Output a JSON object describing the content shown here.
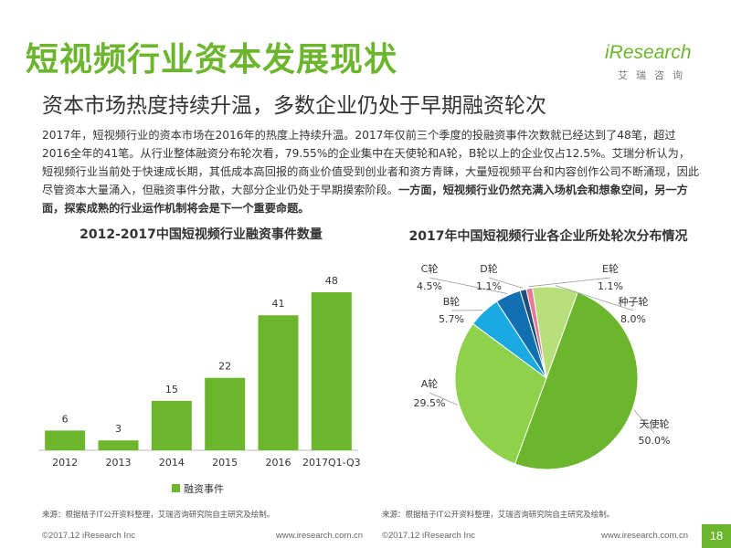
{
  "header": {
    "title": "短视频行业资本发展现状",
    "subtitle": "资本市场热度持续升温，多数企业仍处于早期融资轮次",
    "logo_main": "iResearch",
    "logo_sub": "艾瑞咨询"
  },
  "body": {
    "paragraph": "2017年，短视频行业的资本市场在2016年的热度上持续升温。2017年仅前三个季度的投融资事件次数就已经达到了48笔，超过2016全年的41笔。从行业整体融资分布轮次看，79.55%的企业集中在天使轮和A轮，B轮以上的企业仅占12.5%。艾瑞分析认为，短视频行业当前处于快速成长期，其低成本高回报的商业价值受到创业者和资方青睐，大量短视频平台和内容创作公司不断涌现，因此尽管资本大量涌入，但融资事件分散，大部分企业仍处于早期摸索阶段。",
    "paragraph_bold": "一方面，短视频行业仍然充满入场机会和想象空间，另一方面，探索成熟的行业运作机制将会是下一个重要命题。"
  },
  "colors": {
    "accent": "#6cb62e"
  },
  "chart_data": [
    {
      "type": "bar",
      "title": "2012-2017中国短视频行业融资事件数量",
      "categories": [
        "2012",
        "2013",
        "2014",
        "2015",
        "2016",
        "2017Q1-Q3"
      ],
      "series": [
        {
          "name": "融资事件",
          "values": [
            6,
            3,
            15,
            22,
            41,
            48
          ]
        }
      ],
      "ylim": [
        0,
        48
      ],
      "legend": "bottom",
      "colors": [
        "#6cb62e"
      ]
    },
    {
      "type": "pie",
      "title": "2017年中国短视频行业各企业所处轮次分布情况",
      "slices": [
        {
          "label": "天使轮",
          "value": 50.0,
          "value_label": "50.0%",
          "color": "#6cb62e"
        },
        {
          "label": "A轮",
          "value": 29.5,
          "value_label": "29.5%",
          "color": "#8ed14a"
        },
        {
          "label": "B轮",
          "value": 5.7,
          "value_label": "5.7%",
          "color": "#1aa9e0"
        },
        {
          "label": "C轮",
          "value": 4.5,
          "value_label": "4.5%",
          "color": "#0f6fb0"
        },
        {
          "label": "D轮",
          "value": 1.1,
          "value_label": "1.1%",
          "color": "#1f4e79"
        },
        {
          "label": "E轮",
          "value": 1.1,
          "value_label": "1.1%",
          "color": "#e87a98"
        },
        {
          "label": "种子轮",
          "value": 8.0,
          "value_label": "8.0%",
          "color": "#b8e07a"
        }
      ]
    }
  ],
  "sources": {
    "left": "来源：根据桔子IT公开资料整理，艾瑞咨询研究院自主研究及绘制。",
    "right": "来源：根据桔子IT公开资料整理，艾瑞咨询研究院自主研究及绘制。"
  },
  "footer": {
    "copyright_left": "©2017.12 iResearch Inc",
    "url_left": "www.iresearch.com.cn",
    "copyright_right": "©2017.12 iResearch Inc",
    "url_right": "www.iresearch.com.cn",
    "page_number": "18"
  }
}
